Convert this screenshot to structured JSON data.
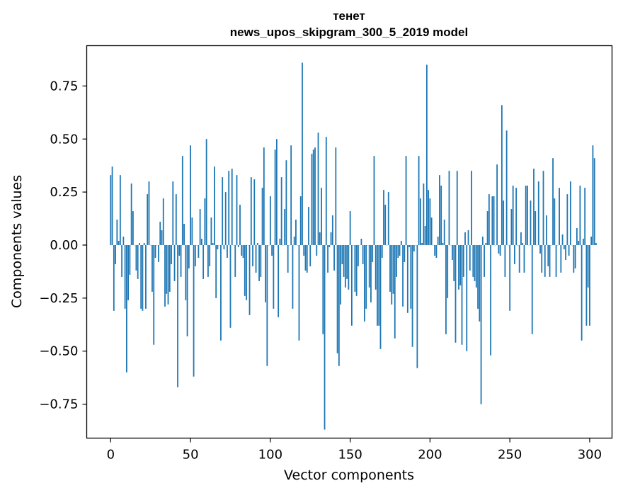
{
  "chart_data": {
    "type": "bar",
    "title": "тенет",
    "subtitle": "news_upos_skipgram_300_5_2019 model",
    "xlabel": "Vector components",
    "ylabel": "Components values",
    "xlim": [
      -15,
      314
    ],
    "ylim": [
      -0.91,
      0.94
    ],
    "xticks": [
      0,
      50,
      100,
      150,
      200,
      250,
      300
    ],
    "yticks": [
      -0.75,
      -0.5,
      -0.25,
      0.0,
      0.25,
      0.5,
      0.75
    ],
    "xtick_labels": [
      "0",
      "50",
      "100",
      "150",
      "200",
      "250",
      "300"
    ],
    "ytick_labels": [
      "−0.75",
      "−0.50",
      "−0.25",
      "0.00",
      "0.25",
      "0.50",
      "0.75"
    ],
    "grid": false,
    "bar_color": "#1f77b4",
    "values": [
      0.33,
      0.37,
      -0.31,
      -0.09,
      0.12,
      0.02,
      0.33,
      -0.15,
      0.04,
      -0.3,
      -0.6,
      -0.26,
      -0.14,
      0.29,
      0.16,
      0.0,
      -0.12,
      -0.16,
      0.01,
      -0.3,
      -0.31,
      0.01,
      -0.3,
      0.24,
      0.3,
      0.0,
      -0.22,
      -0.47,
      -0.06,
      0.0,
      -0.08,
      0.11,
      0.07,
      0.22,
      -0.29,
      -0.23,
      -0.28,
      -0.22,
      -0.09,
      0.3,
      -0.17,
      0.24,
      -0.67,
      -0.05,
      -0.15,
      0.42,
      0.1,
      -0.26,
      -0.43,
      -0.11,
      0.47,
      0.13,
      -0.62,
      -0.1,
      0.0,
      -0.06,
      0.17,
      0.03,
      -0.16,
      0.22,
      0.5,
      -0.15,
      -0.1,
      0.13,
      0.01,
      0.37,
      -0.25,
      -0.02,
      0.0,
      -0.45,
      0.32,
      -0.02,
      0.25,
      -0.06,
      0.35,
      -0.39,
      0.36,
      0.0,
      -0.15,
      0.33,
      -0.01,
      0.19,
      -0.05,
      -0.06,
      -0.24,
      -0.26,
      0.0,
      -0.33,
      0.32,
      -0.1,
      0.31,
      -0.13,
      0.01,
      -0.17,
      -0.15,
      0.27,
      0.46,
      -0.27,
      -0.57,
      0.0,
      0.23,
      -0.05,
      -0.3,
      0.45,
      0.5,
      -0.34,
      0.03,
      0.32,
      0.0,
      0.17,
      0.4,
      -0.13,
      0.0,
      0.47,
      -0.3,
      0.04,
      0.12,
      0.0,
      -0.45,
      0.23,
      0.86,
      -0.05,
      -0.12,
      -0.13,
      0.18,
      -0.1,
      0.43,
      0.45,
      0.46,
      -0.05,
      0.53,
      0.06,
      0.27,
      -0.42,
      -0.87,
      0.51,
      -0.13,
      -0.01,
      0.06,
      0.14,
      -0.12,
      0.46,
      -0.51,
      -0.57,
      -0.28,
      -0.09,
      -0.15,
      -0.2,
      -0.16,
      -0.21,
      0.16,
      -0.38,
      0.0,
      -0.22,
      -0.24,
      -0.1,
      0.0,
      0.03,
      -0.09,
      -0.36,
      -0.3,
      0.0,
      -0.2,
      -0.27,
      -0.08,
      0.42,
      -0.21,
      -0.38,
      -0.38,
      -0.49,
      -0.06,
      0.26,
      0.19,
      0.0,
      0.25,
      -0.22,
      -0.28,
      -0.23,
      -0.44,
      -0.15,
      -0.06,
      -0.05,
      0.02,
      -0.29,
      -0.08,
      0.42,
      -0.32,
      -0.01,
      -0.3,
      -0.48,
      -0.03,
      0.0,
      -0.58,
      0.42,
      0.22,
      0.01,
      0.29,
      0.09,
      0.85,
      0.26,
      0.22,
      0.13,
      0.0,
      -0.05,
      -0.06,
      0.04,
      0.33,
      0.28,
      0.01,
      0.12,
      -0.42,
      -0.25,
      0.35,
      0.0,
      -0.07,
      -0.17,
      -0.46,
      0.35,
      -0.21,
      -0.19,
      -0.47,
      -0.15,
      0.06,
      -0.5,
      0.07,
      -0.12,
      0.35,
      -0.15,
      -0.17,
      -0.2,
      -0.3,
      -0.36,
      -0.75,
      0.04,
      -0.15,
      0.01,
      0.16,
      0.24,
      -0.52,
      0.23,
      0.23,
      0.0,
      0.38,
      -0.04,
      -0.05,
      0.66,
      0.21,
      -0.15,
      0.54,
      0.0,
      -0.31,
      0.17,
      0.28,
      -0.09,
      0.27,
      0.0,
      -0.13,
      0.06,
      0.01,
      -0.13,
      0.28,
      0.28,
      0.0,
      0.21,
      -0.42,
      0.36,
      0.16,
      0.0,
      0.3,
      -0.04,
      -0.13,
      0.35,
      -0.15,
      0.14,
      -0.1,
      -0.15,
      0.0,
      0.41,
      0.22,
      -0.15,
      0.0,
      0.27,
      -0.13,
      0.05,
      -0.02,
      -0.07,
      0.24,
      -0.05,
      0.3,
      0.0,
      -0.13,
      -0.11,
      0.08,
      0.02,
      0.28,
      -0.45,
      0.03,
      0.27,
      -0.38,
      -0.2,
      -0.38,
      0.04,
      0.47,
      0.41,
      0.01
    ]
  }
}
